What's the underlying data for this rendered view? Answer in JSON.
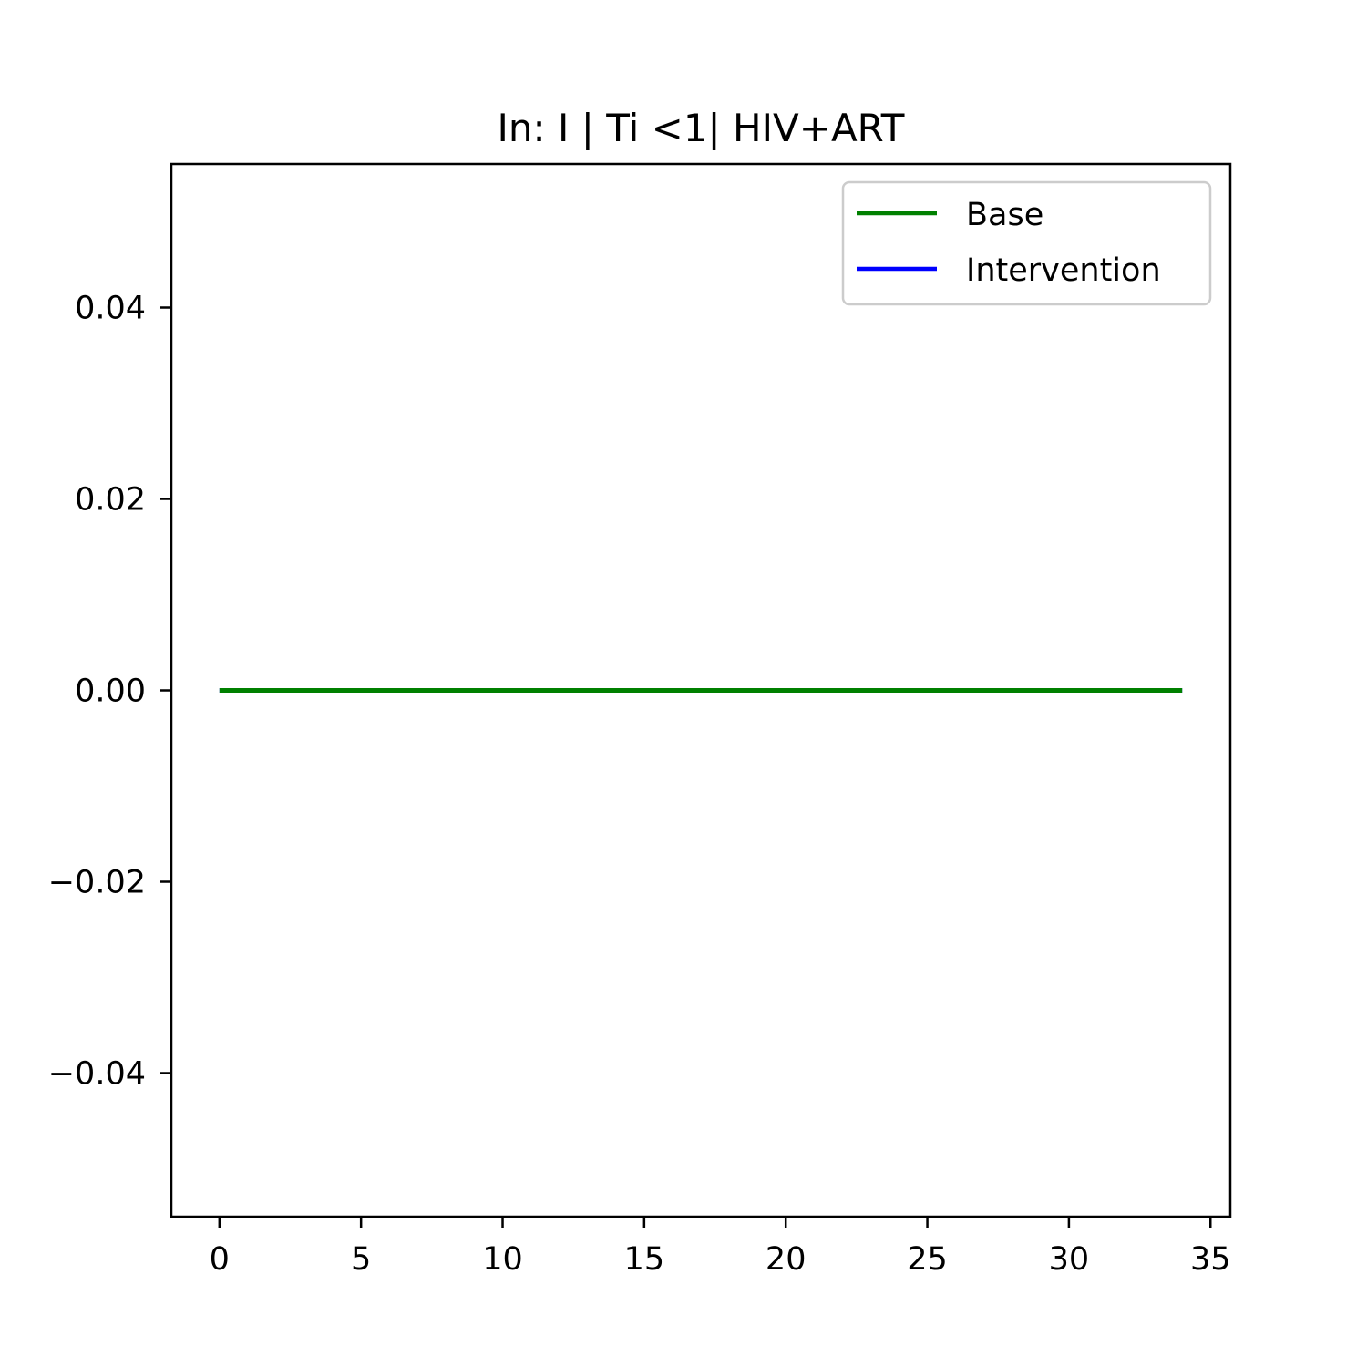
{
  "chart_data": {
    "type": "line",
    "title": "In: I | Ti <1| HIV+ART",
    "xlabel": "",
    "ylabel": "",
    "xlim": [
      -1.7,
      35.7
    ],
    "ylim": [
      -0.055,
      0.055
    ],
    "x_ticks": [
      0,
      5,
      10,
      15,
      20,
      25,
      30,
      35
    ],
    "x_tick_labels": [
      "0",
      "5",
      "10",
      "15",
      "20",
      "25",
      "30",
      "35"
    ],
    "y_ticks": [
      0.04,
      0.02,
      0.0,
      -0.02,
      -0.04
    ],
    "y_tick_labels": [
      "0.04",
      "0.02",
      "0.00",
      "−0.02",
      "−0.04"
    ],
    "grid": false,
    "legend_position": "top-right",
    "series": [
      {
        "name": "Base",
        "color": "#008000",
        "x": [
          0,
          34
        ],
        "y": [
          0,
          0
        ]
      },
      {
        "name": "Intervention",
        "color": "#0000ff",
        "x": [
          0,
          34
        ],
        "y": [
          0,
          0
        ]
      }
    ]
  }
}
